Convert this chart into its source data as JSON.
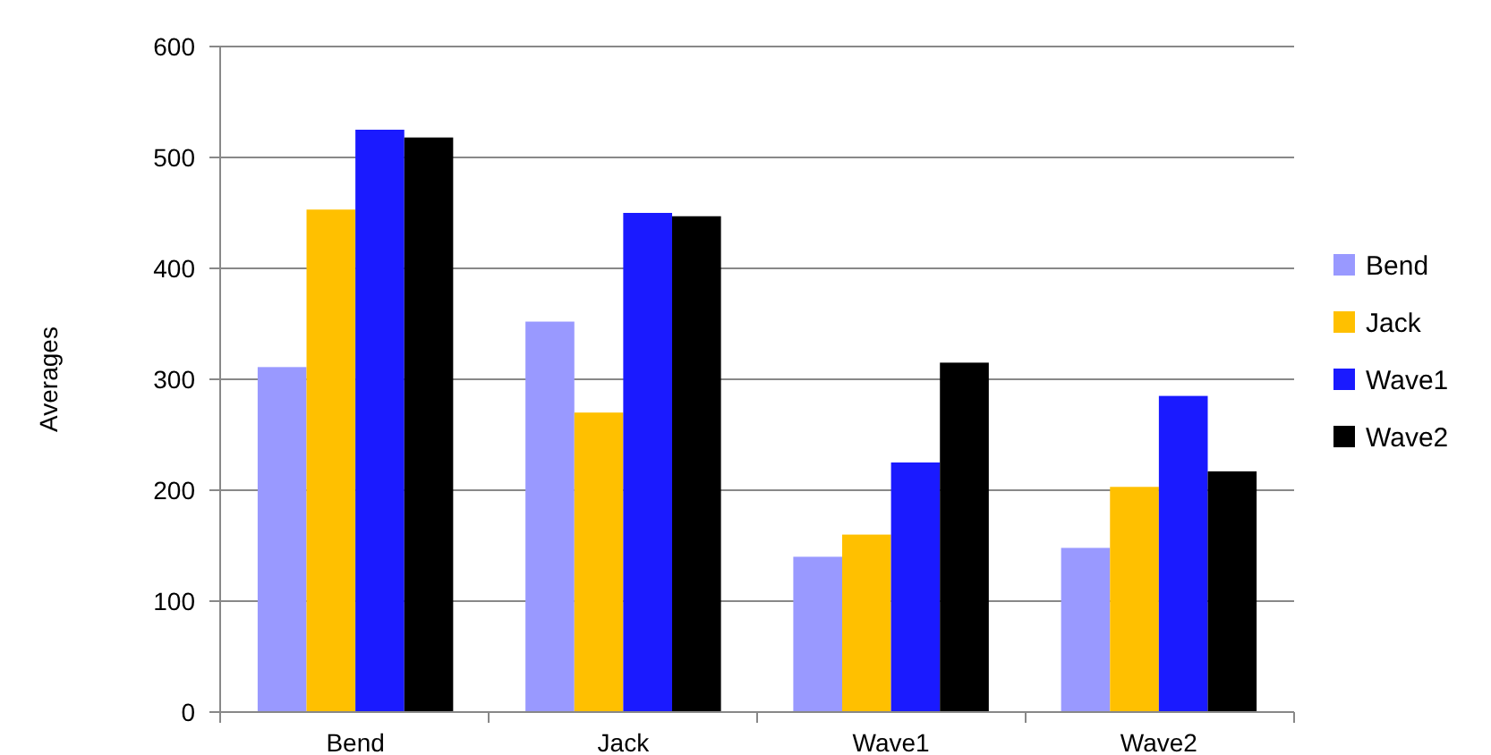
{
  "chart_data": {
    "type": "bar",
    "ylabel": "Averages",
    "categories": [
      "Bend",
      "Jack",
      "Wave1",
      "Wave2"
    ],
    "series": [
      {
        "name": "Bend",
        "color": "#9999ff",
        "values": [
          311,
          352,
          140,
          148
        ]
      },
      {
        "name": "Jack",
        "color": "#ffc000",
        "values": [
          453,
          270,
          160,
          203
        ]
      },
      {
        "name": "Wave1",
        "color": "#1a1aff",
        "values": [
          525,
          450,
          225,
          285
        ]
      },
      {
        "name": "Wave2",
        "color": "#000000",
        "values": [
          518,
          447,
          315,
          217
        ]
      }
    ],
    "ylim": [
      0,
      600
    ],
    "yticks": [
      0,
      100,
      200,
      300,
      400,
      500,
      600
    ],
    "grid": "y",
    "legend": "right"
  }
}
